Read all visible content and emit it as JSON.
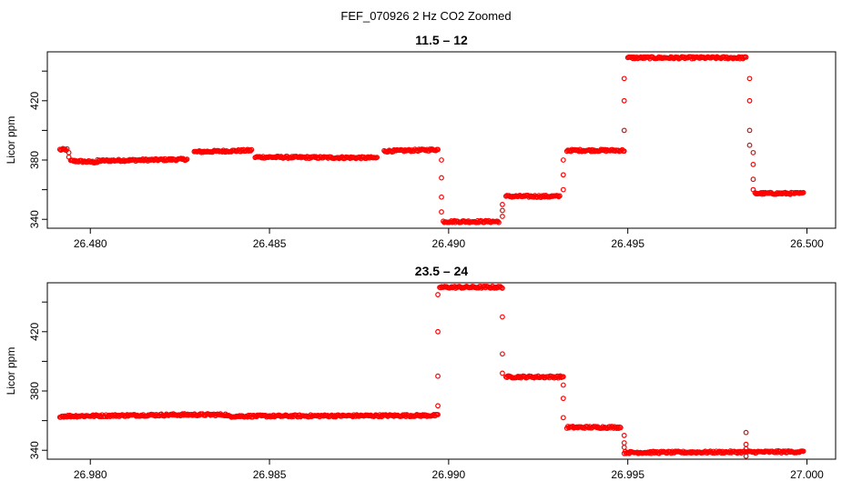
{
  "figure_title": "FEF_070926  2 Hz CO2 Zoomed",
  "colors": {
    "points": "#ff0000",
    "axis": "#000000",
    "background": "#ffffff"
  },
  "chart_data": [
    {
      "type": "scatter",
      "title": "11.5 – 12",
      "xlabel": "",
      "ylabel": "Licor ppm",
      "xlim": [
        26.4788,
        26.5008
      ],
      "ylim": [
        334,
        453
      ],
      "x_ticks": [
        26.48,
        26.485,
        26.49,
        26.495,
        26.5
      ],
      "x_tick_labels": [
        "26.480",
        "26.485",
        "26.490",
        "26.495",
        "26.500"
      ],
      "y_ticks": [
        340,
        360,
        380,
        400,
        420,
        440
      ],
      "y_tick_labels": [
        "340",
        "",
        "380",
        "",
        "420",
        ""
      ],
      "grid": false,
      "legend": "none",
      "series": [
        {
          "marker": "open-circle",
          "color": "#ff0000",
          "segments": [
            {
              "x0": 26.47915,
              "x1": 26.47935,
              "y0": 387,
              "y1": 387
            },
            {
              "x0": 26.47945,
              "x1": 26.4802,
              "y0": 379.5,
              "y1": 378.5
            },
            {
              "x0": 26.4802,
              "x1": 26.4827,
              "y0": 379.5,
              "y1": 380.5
            },
            {
              "x0": 26.4829,
              "x1": 26.4845,
              "y0": 385.5,
              "y1": 386.5
            },
            {
              "x0": 26.4846,
              "x1": 26.488,
              "y0": 382,
              "y1": 381.5
            },
            {
              "x0": 26.4882,
              "x1": 26.4897,
              "y0": 386,
              "y1": 387
            },
            {
              "x0": 26.48985,
              "x1": 26.4914,
              "y0": 338.5,
              "y1": 338.5
            },
            {
              "x0": 26.4916,
              "x1": 26.4931,
              "y0": 355.5,
              "y1": 355.5
            },
            {
              "x0": 26.4933,
              "x1": 26.4949,
              "y0": 386.5,
              "y1": 386.5
            },
            {
              "x0": 26.495,
              "x1": 26.4983,
              "y0": 449,
              "y1": 449
            },
            {
              "x0": 26.49855,
              "x1": 26.4999,
              "y0": 357.5,
              "y1": 357.5
            }
          ],
          "transitions": [
            {
              "x": 26.4794,
              "y": [
                385,
                382
              ]
            },
            {
              "x": 26.4898,
              "y": [
                380,
                368,
                355,
                345
              ]
            },
            {
              "x": 26.4915,
              "y": [
                342,
                346,
                350
              ]
            },
            {
              "x": 26.4932,
              "y": [
                360,
                370,
                380
              ]
            },
            {
              "x": 26.4949,
              "y": [
                400,
                420,
                435
              ]
            },
            {
              "x": 26.4984,
              "y": [
                435,
                420,
                400,
                390
              ]
            },
            {
              "x": 26.4985,
              "y": [
                385,
                377,
                367,
                360
              ]
            }
          ]
        }
      ]
    },
    {
      "type": "scatter",
      "title": "23.5 – 24",
      "xlabel": "",
      "ylabel": "Licor ppm",
      "xlim": [
        26.9788,
        27.0008
      ],
      "ylim": [
        334,
        453
      ],
      "x_ticks": [
        26.98,
        26.985,
        26.99,
        26.995,
        27.0
      ],
      "x_tick_labels": [
        "26.980",
        "26.985",
        "26.990",
        "26.995",
        "27.000"
      ],
      "y_ticks": [
        340,
        360,
        380,
        400,
        420,
        440
      ],
      "y_tick_labels": [
        "340",
        "",
        "380",
        "",
        "420",
        ""
      ],
      "grid": false,
      "legend": "none",
      "series": [
        {
          "marker": "open-circle",
          "color": "#ff0000",
          "segments": [
            {
              "x0": 26.97915,
              "x1": 26.9826,
              "y0": 363,
              "y1": 364
            },
            {
              "x0": 26.9826,
              "x1": 26.9838,
              "y0": 364,
              "y1": 364
            },
            {
              "x0": 26.9838,
              "x1": 26.9897,
              "y0": 363,
              "y1": 363.5
            },
            {
              "x0": 26.98975,
              "x1": 26.9915,
              "y0": 450,
              "y1": 450
            },
            {
              "x0": 26.9916,
              "x1": 26.9932,
              "y0": 389.5,
              "y1": 389.5
            },
            {
              "x0": 26.9933,
              "x1": 26.9948,
              "y0": 355.5,
              "y1": 355.5
            },
            {
              "x0": 26.9949,
              "x1": 26.9999,
              "y0": 338.5,
              "y1": 339
            }
          ],
          "transitions": [
            {
              "x": 26.9897,
              "y": [
                370,
                390,
                420,
                445
              ]
            },
            {
              "x": 26.9915,
              "y": [
                430,
                405,
                392
              ]
            },
            {
              "x": 26.9932,
              "y": [
                384,
                375,
                362
              ]
            },
            {
              "x": 26.9949,
              "y": [
                350,
                345,
                342
              ]
            },
            {
              "x": 26.9983,
              "y": [
                352,
                344,
                341,
                336
              ]
            }
          ]
        }
      ]
    }
  ]
}
